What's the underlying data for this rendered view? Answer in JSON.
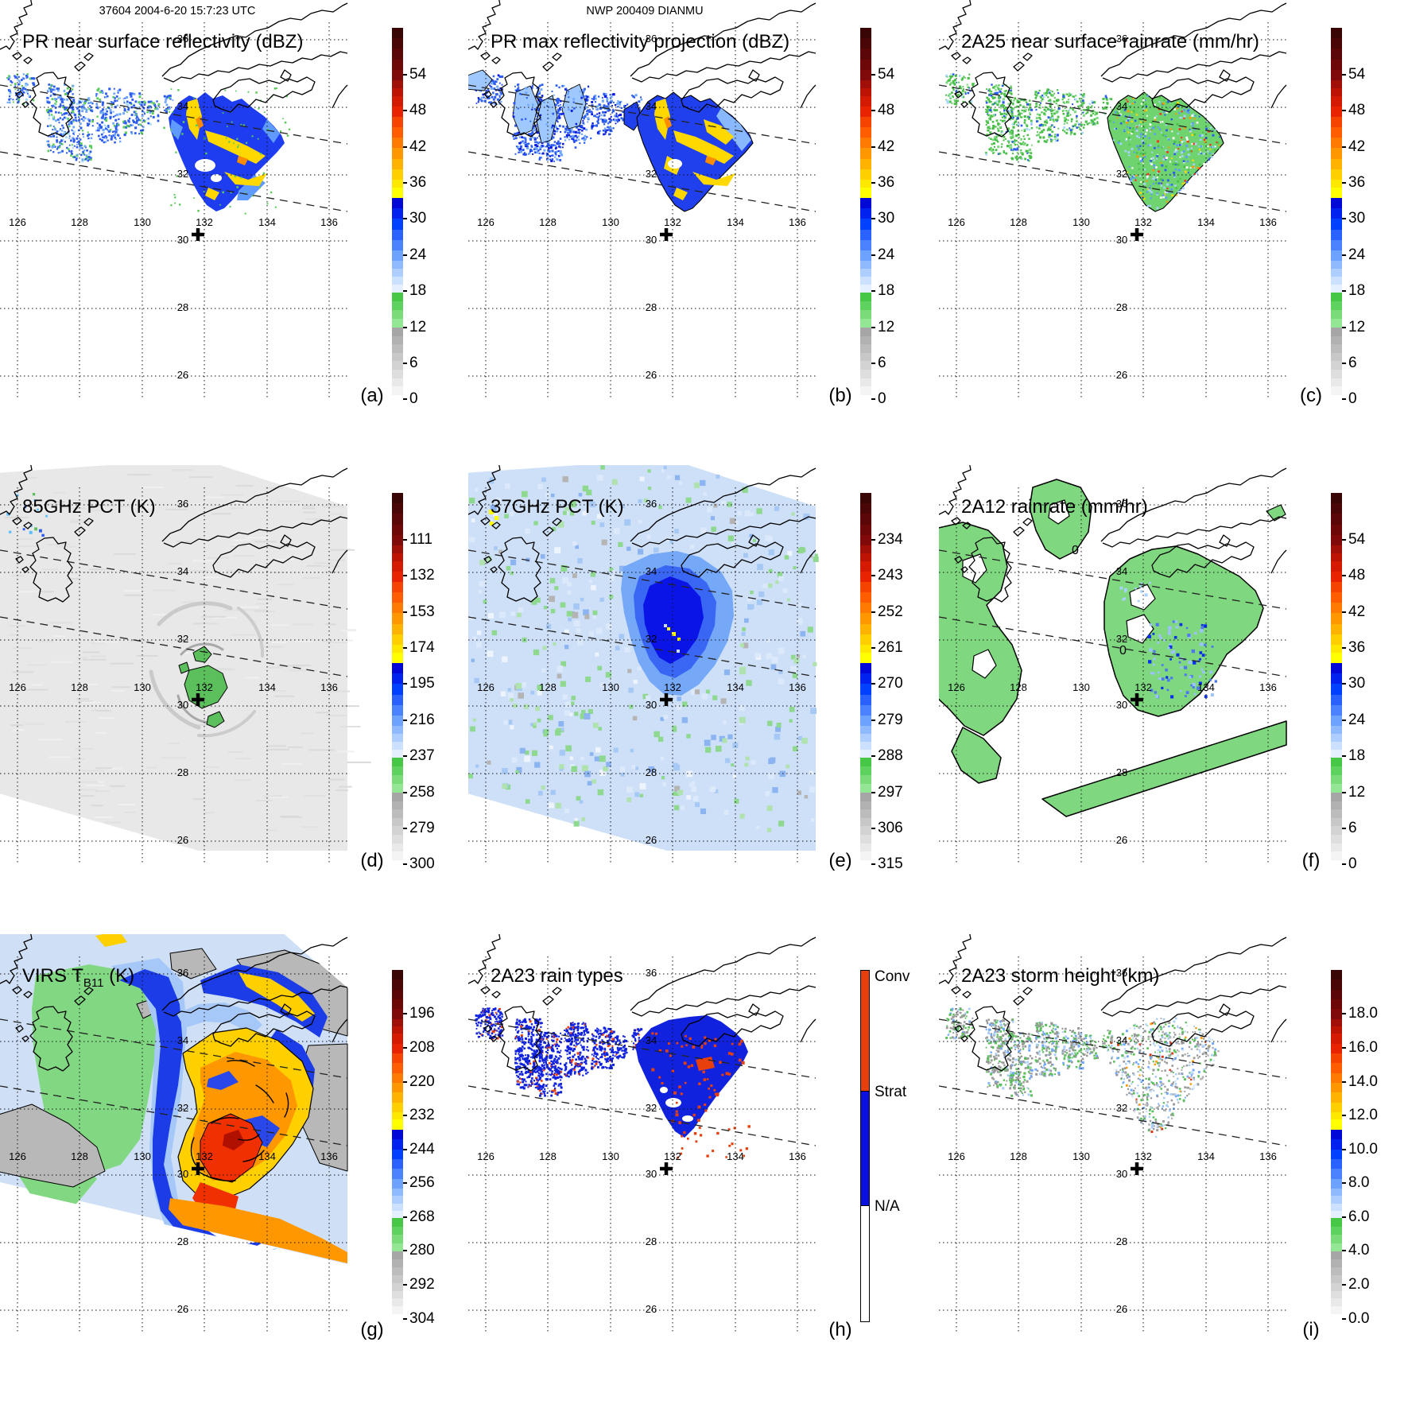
{
  "header": {
    "left_title": "37604 2004-6-20 15:7:23 UTC",
    "center_title": "NWP 200409 DIANMU"
  },
  "grid": {
    "lon_labels": [
      "126",
      "128",
      "130",
      "132",
      "134",
      "136"
    ],
    "lat_labels": [
      "36",
      "34",
      "32",
      "30",
      "28",
      "26"
    ]
  },
  "panels": [
    {
      "id": "a",
      "title": "PR near surface reflectivity (dBZ)",
      "letter": "(a)",
      "colorbar": {
        "type": "gradient",
        "unit": "dBZ",
        "ticks": [
          "54",
          "48",
          "42",
          "36",
          "30",
          "24",
          "18",
          "12",
          "6",
          "0"
        ]
      }
    },
    {
      "id": "b",
      "title": "PR max reflectivity projection (dBZ)",
      "letter": "(b)",
      "colorbar": {
        "type": "gradient",
        "unit": "dBZ",
        "ticks": [
          "54",
          "48",
          "42",
          "36",
          "30",
          "24",
          "18",
          "12",
          "6",
          "0"
        ]
      }
    },
    {
      "id": "c",
      "title": "2A25 near surface rainrate (mm/hr)",
      "letter": "(c)",
      "colorbar": {
        "type": "gradient",
        "unit": "mm/hr",
        "ticks": [
          "54",
          "48",
          "42",
          "36",
          "30",
          "24",
          "18",
          "12",
          "6",
          "0"
        ]
      }
    },
    {
      "id": "d",
      "title": "85GHz PCT (K)",
      "letter": "(d)",
      "colorbar": {
        "type": "gradient",
        "unit": "K",
        "ticks": [
          "111",
          "132",
          "153",
          "174",
          "195",
          "216",
          "237",
          "258",
          "279",
          "300"
        ]
      }
    },
    {
      "id": "e",
      "title": "37GHz PCT (K)",
      "letter": "(e)",
      "colorbar": {
        "type": "gradient",
        "unit": "K",
        "ticks": [
          "234",
          "243",
          "252",
          "261",
          "270",
          "279",
          "288",
          "297",
          "306",
          "315"
        ]
      }
    },
    {
      "id": "f",
      "title": "2A12 rainrate (mm/hr)",
      "letter": "(f)",
      "contour_labels": [
        "0",
        "0"
      ],
      "colorbar": {
        "type": "gradient",
        "unit": "mm/hr",
        "ticks": [
          "54",
          "48",
          "42",
          "36",
          "30",
          "24",
          "18",
          "12",
          "6",
          "0"
        ]
      }
    },
    {
      "id": "g",
      "title": "VIRS T",
      "title_sub": "B11",
      "title_tail": " (K)",
      "letter": "(g)",
      "colorbar": {
        "type": "gradient",
        "unit": "K",
        "ticks": [
          "196",
          "208",
          "220",
          "232",
          "244",
          "256",
          "268",
          "280",
          "292",
          "304"
        ]
      }
    },
    {
      "id": "h",
      "title": "2A23 rain types",
      "letter": "(h)",
      "colorbar": {
        "type": "categorical",
        "labels": [
          "Conv",
          "Strat",
          "N/A"
        ],
        "colors": [
          "#e8400c",
          "#0a10dd",
          "#ffffff"
        ]
      }
    },
    {
      "id": "i",
      "title": "2A23 storm height (km)",
      "letter": "(i)",
      "colorbar": {
        "type": "gradient",
        "unit": "km",
        "ticks": [
          "18.0",
          "16.0",
          "14.0",
          "12.0",
          "10.0",
          "8.0",
          "6.0",
          "4.0",
          "2.0",
          "0.0"
        ]
      }
    }
  ],
  "colorbar_palette": [
    {
      "c": "#3a0505",
      "w": 2
    },
    {
      "c": "#4a0606",
      "w": 2
    },
    {
      "c": "#5c0707",
      "w": 2
    },
    {
      "c": "#6e0808",
      "w": 2
    },
    {
      "c": "#800a0a",
      "w": 2
    },
    {
      "c": "#a00f08",
      "w": 1.5
    },
    {
      "c": "#bb1403",
      "w": 1.5
    },
    {
      "c": "#d51a02",
      "w": 2
    },
    {
      "c": "#e82400",
      "w": 2
    },
    {
      "c": "#f54300",
      "w": 2
    },
    {
      "c": "#ff5d00",
      "w": 2
    },
    {
      "c": "#ff7a00",
      "w": 2
    },
    {
      "c": "#ff9800",
      "w": 2
    },
    {
      "c": "#ffb300",
      "w": 2
    },
    {
      "c": "#ffcf00",
      "w": 2
    },
    {
      "c": "#ffe800",
      "w": 1.5
    },
    {
      "c": "#ffff00",
      "w": 2
    },
    {
      "c": "#0008d8",
      "w": 2
    },
    {
      "c": "#0022ee",
      "w": 2
    },
    {
      "c": "#0040ff",
      "w": 2
    },
    {
      "c": "#2a62ff",
      "w": 2
    },
    {
      "c": "#4b82ff",
      "w": 2
    },
    {
      "c": "#6ea2ff",
      "w": 2
    },
    {
      "c": "#8fbaff",
      "w": 1.5
    },
    {
      "c": "#aeceff",
      "w": 1.5
    },
    {
      "c": "#cce0ff",
      "w": 1.5
    },
    {
      "c": "#e4efff",
      "w": 1.5
    },
    {
      "c": "#46c846",
      "w": 1.7
    },
    {
      "c": "#5ed25e",
      "w": 1.7
    },
    {
      "c": "#79dc79",
      "w": 1.7
    },
    {
      "c": "#93e693",
      "w": 1.7
    },
    {
      "c": "#a6a6a6",
      "w": 1.6
    },
    {
      "c": "#b1b1b1",
      "w": 1.6
    },
    {
      "c": "#bcbcbc",
      "w": 1.6
    },
    {
      "c": "#c8c8c8",
      "w": 1.6
    },
    {
      "c": "#d3d3d3",
      "w": 1.6
    },
    {
      "c": "#dedede",
      "w": 1.6
    },
    {
      "c": "#e9e9e9",
      "w": 1.6
    },
    {
      "c": "#f4f4f4",
      "w": 1.6
    },
    {
      "c": "#ffffff",
      "w": 1.6
    }
  ],
  "chart_data": {
    "type": "heatmap",
    "title": "NWP 200409 DIANMU — multi-sensor satellite overpass 37604, 2004-6-20 15:7:23 UTC",
    "layout": "3x3 map panels, identical lon/lat domain, vertical colorbar right of each panel",
    "map_domain": {
      "lon_ticks": [
        126,
        128,
        130,
        132,
        134,
        136
      ],
      "lat_ticks": [
        36,
        34,
        32,
        30,
        28,
        26
      ],
      "region": "western Japan / Northwest Pacific",
      "grid": "dotted graticule every 2 degrees; dashed lines = PR swath edges; bold + marks storm center"
    },
    "storm_center_marker": {
      "lon_approx": 131.8,
      "lat_approx": 30.2
    },
    "panels": [
      {
        "letter": "(a)",
        "variable": "PR near surface reflectivity",
        "units": "dBZ",
        "scale_ticks": [
          54,
          48,
          42,
          36,
          30,
          24,
          18,
          12,
          6,
          0
        ]
      },
      {
        "letter": "(b)",
        "variable": "PR max reflectivity projection",
        "units": "dBZ",
        "scale_ticks": [
          54,
          48,
          42,
          36,
          30,
          24,
          18,
          12,
          6,
          0
        ]
      },
      {
        "letter": "(c)",
        "variable": "2A25 near surface rainrate",
        "units": "mm/hr",
        "scale_ticks": [
          54,
          48,
          42,
          36,
          30,
          24,
          18,
          12,
          6,
          0
        ]
      },
      {
        "letter": "(d)",
        "variable": "85GHz PCT",
        "units": "K",
        "scale_ticks": [
          111,
          132,
          153,
          174,
          195,
          216,
          237,
          258,
          279,
          300
        ]
      },
      {
        "letter": "(e)",
        "variable": "37GHz PCT",
        "units": "K",
        "scale_ticks": [
          234,
          243,
          252,
          261,
          270,
          279,
          288,
          297,
          306,
          315
        ]
      },
      {
        "letter": "(f)",
        "variable": "2A12 rainrate",
        "units": "mm/hr",
        "scale_ticks": [
          54,
          48,
          42,
          36,
          30,
          24,
          18,
          12,
          6,
          0
        ],
        "contour_labels": [
          "0",
          "0"
        ]
      },
      {
        "letter": "(g)",
        "variable": "VIRS T_B11 brightness temperature",
        "units": "K",
        "scale_ticks": [
          196,
          208,
          220,
          232,
          244,
          256,
          268,
          280,
          292,
          304
        ]
      },
      {
        "letter": "(h)",
        "variable": "2A23 rain types",
        "categories": [
          "Conv",
          "Strat",
          "N/A"
        ],
        "category_colors": [
          "#e8400c",
          "#0a10dd",
          "#ffffff"
        ]
      },
      {
        "letter": "(i)",
        "variable": "2A23 storm height",
        "units": "km",
        "scale_ticks": [
          18.0,
          16.0,
          14.0,
          12.0,
          10.0,
          8.0,
          6.0,
          4.0,
          2.0,
          0.0
        ]
      }
    ],
    "palette_note": "shared rainbow scale: white/grays (low) -> green -> pale blue -> blue (mid) -> yellow -> orange -> red -> dark maroon (over-range at top of bar)"
  }
}
